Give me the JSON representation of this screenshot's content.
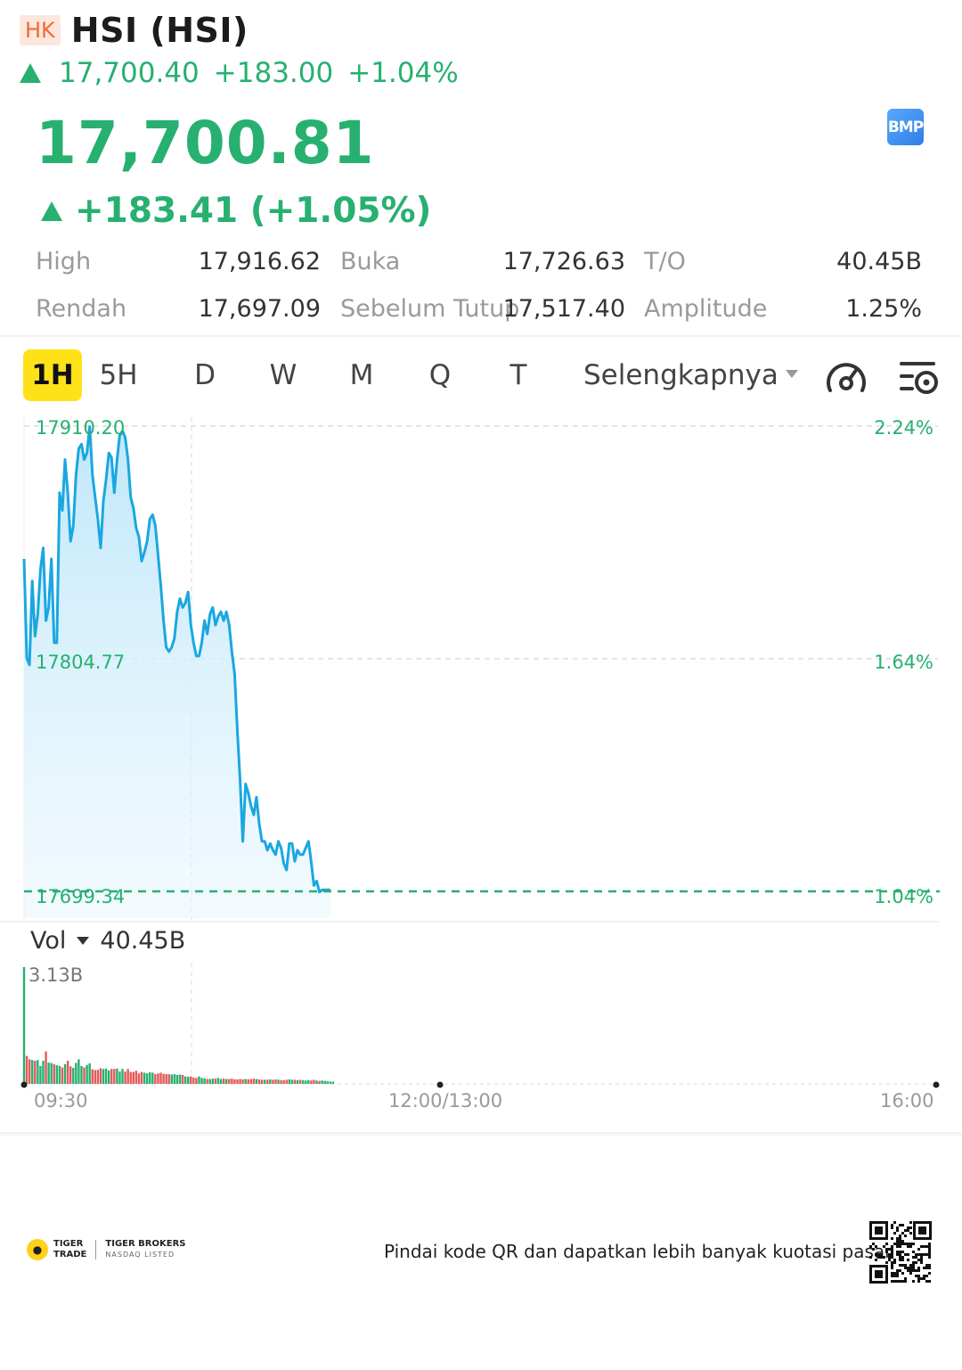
{
  "header": {
    "market": "HK",
    "title": "HSI (HSI)"
  },
  "sub_quote": {
    "price": "17,700.40",
    "change": "+183.00",
    "change_pct": "+1.04%"
  },
  "main_quote": {
    "price": "17,700.81",
    "change_text": "+183.41 (+1.05%)",
    "badge": "BMP"
  },
  "stats": {
    "high_label": "High",
    "high_value": "17,916.62",
    "open_label": "Buka",
    "open_value": "17,726.63",
    "turnover_label": "T/O",
    "turnover_value": "40.45B",
    "low_label": "Rendah",
    "low_value": "17,697.09",
    "prevclose_label": "Sebelum Tutup",
    "prevclose_value": "17,517.40",
    "amplitude_label": "Amplitude",
    "amplitude_value": "1.25%"
  },
  "tabs": [
    "1H",
    "5H",
    "D",
    "W",
    "M",
    "Q",
    "T"
  ],
  "more_label": "Selengkapnya",
  "icons": {
    "tool1": "speedometer-icon",
    "tool2": "chart-settings-icon"
  },
  "chart_data": {
    "type": "area",
    "y_axis_left": [
      "17910.20",
      "17804.77",
      "17699.34"
    ],
    "y_axis_right": [
      "2.24%",
      "1.64%",
      "1.04%"
    ],
    "ylim": [
      17699.34,
      17910.2
    ],
    "x_labels": [
      "09:30",
      "12:00/13:00",
      "16:00"
    ],
    "reference_line": 17699.34,
    "price_series": [
      17850,
      17805,
      17802,
      17840,
      17815,
      17825,
      17845,
      17855,
      17822,
      17828,
      17850,
      17812,
      17812,
      17880,
      17872,
      17895,
      17880,
      17858,
      17865,
      17888,
      17900,
      17902,
      17895,
      17898,
      17910,
      17888,
      17878,
      17868,
      17855,
      17876,
      17886,
      17898,
      17896,
      17880,
      17895,
      17906,
      17908,
      17905,
      17895,
      17878,
      17873,
      17864,
      17860,
      17849,
      17853,
      17858,
      17868,
      17870,
      17865,
      17852,
      17838,
      17822,
      17810,
      17808,
      17810,
      17814,
      17826,
      17832,
      17828,
      17830,
      17835,
      17820,
      17812,
      17806,
      17806,
      17812,
      17822,
      17816,
      17825,
      17828,
      17820,
      17824,
      17826,
      17822,
      17826,
      17820,
      17808,
      17798,
      17772,
      17750,
      17722,
      17748,
      17744,
      17738,
      17734,
      17742,
      17730,
      17722,
      17722,
      17718,
      17721,
      17718,
      17716,
      17722,
      17719,
      17712,
      17709,
      17721,
      17721,
      17713,
      17718,
      17716,
      17716,
      17719,
      17722,
      17713,
      17702,
      17704,
      17699,
      17700,
      17700,
      17700,
      17700
    ],
    "price_series_axis": "minute index from 09:30",
    "vol_header": "40.45B",
    "vol_label": "Vol",
    "vol_max": "3.13B",
    "volume": [
      3.13,
      0.75,
      0.66,
      0.64,
      0.62,
      0.64,
      0.48,
      0.62,
      0.87,
      0.57,
      0.56,
      0.53,
      0.5,
      0.48,
      0.44,
      0.53,
      0.62,
      0.47,
      0.43,
      0.56,
      0.66,
      0.48,
      0.44,
      0.51,
      0.55,
      0.39,
      0.37,
      0.38,
      0.42,
      0.4,
      0.41,
      0.36,
      0.4,
      0.4,
      0.41,
      0.33,
      0.4,
      0.33,
      0.4,
      0.32,
      0.32,
      0.35,
      0.28,
      0.32,
      0.3,
      0.28,
      0.31,
      0.3,
      0.26,
      0.28,
      0.3,
      0.27,
      0.26,
      0.26,
      0.25,
      0.26,
      0.24,
      0.25,
      0.24,
      0.2,
      0.19,
      0.2,
      0.17,
      0.16,
      0.2,
      0.16,
      0.15,
      0.13,
      0.13,
      0.14,
      0.14,
      0.16,
      0.13,
      0.14,
      0.13,
      0.13,
      0.14,
      0.12,
      0.12,
      0.13,
      0.12,
      0.13,
      0.12,
      0.13,
      0.14,
      0.13,
      0.12,
      0.11,
      0.11,
      0.11,
      0.12,
      0.11,
      0.12,
      0.11,
      0.1,
      0.1,
      0.11,
      0.12,
      0.11,
      0.11,
      0.1,
      0.11,
      0.1,
      0.09,
      0.1,
      0.09,
      0.11,
      0.09,
      0.08,
      0.09,
      0.08,
      0.07,
      0.06,
      0.06
    ],
    "volume_unit": "B"
  },
  "footer": {
    "brand1_line1": "TIGER",
    "brand1_line2": "TRADE",
    "brand2_line1": "TIGER BROKERS",
    "brand2_line2": "NASDAQ LISTED",
    "qr_text": "Pindai kode QR dan dapatkan lebih banyak kuotasi pasar"
  },
  "colors": {
    "up": "#27b070",
    "line": "#1aa7e0",
    "highlight": "#ffe118"
  }
}
